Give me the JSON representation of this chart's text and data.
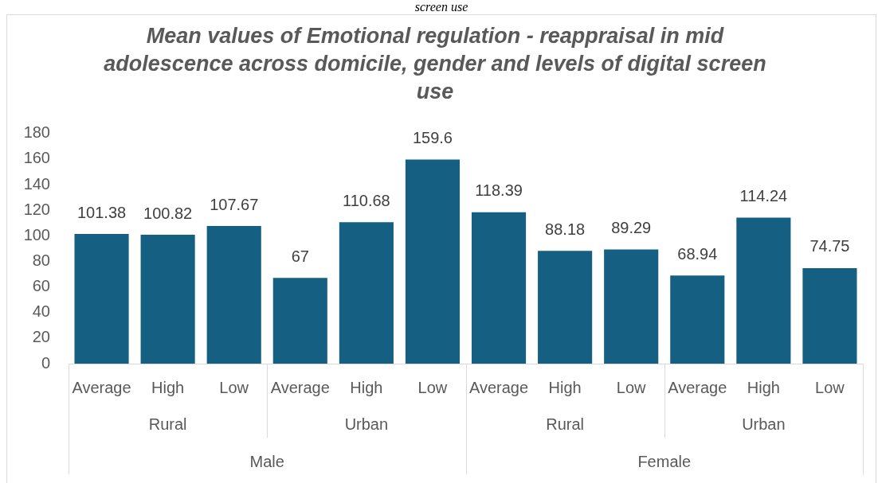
{
  "chart_data": {
    "type": "bar",
    "title": "Mean values of Emotional regulation - reappraisal in mid adolescence across domicile, gender and levels of digital screen use",
    "subtitle": "screen use",
    "categories": [
      "Average",
      "High",
      "Low",
      "Average",
      "High",
      "Low",
      "Average",
      "High",
      "Low",
      "Average",
      "High",
      "Low"
    ],
    "values": [
      101.38,
      100.82,
      107.67,
      67,
      110.68,
      159.6,
      118.39,
      88.18,
      89.29,
      68.94,
      114.24,
      74.75
    ],
    "color": "#156082",
    "ylim": [
      0,
      180
    ],
    "yticks": [
      0,
      20,
      40,
      60,
      80,
      100,
      120,
      140,
      160,
      180
    ],
    "grid": false,
    "data_labels": true,
    "annotations": [
      "Rural",
      "Urban",
      "Rural",
      "Urban",
      "Male",
      "Female"
    ]
  }
}
